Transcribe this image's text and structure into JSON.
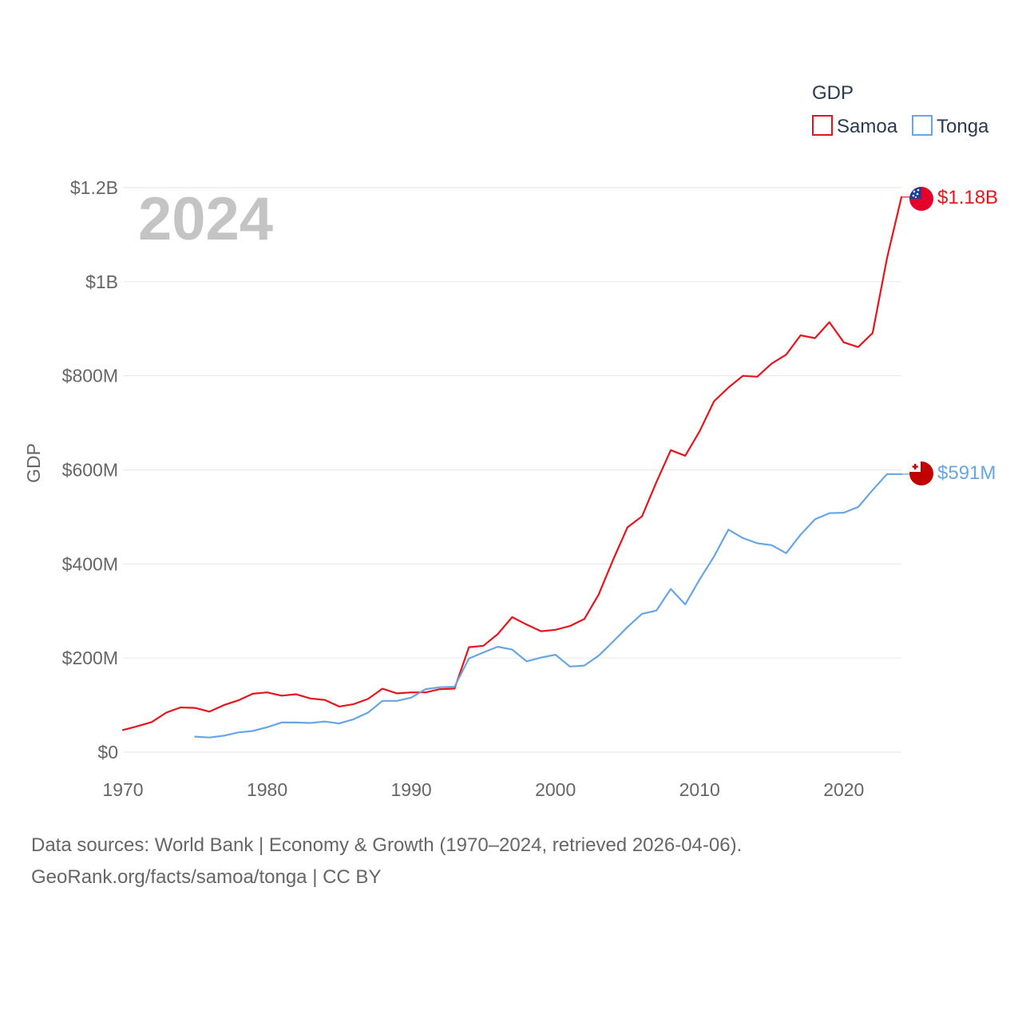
{
  "chart_data": {
    "type": "line",
    "title": "",
    "watermark_year": "2024",
    "ylabel": "GDP",
    "xlabel": "",
    "xlim": [
      1970,
      2024
    ],
    "ylim": [
      0,
      1200000000
    ],
    "x_ticks": [
      1970,
      1980,
      1990,
      2000,
      2010,
      2020
    ],
    "x_tick_labels": [
      "1970",
      "1980",
      "1990",
      "2000",
      "2010",
      "2020"
    ],
    "y_ticks": [
      0,
      200000000,
      400000000,
      600000000,
      800000000,
      1000000000,
      1200000000
    ],
    "y_tick_labels": [
      "$0",
      "$200M",
      "$400M",
      "$600M",
      "$800M",
      "$1B",
      "$1.2B"
    ],
    "grid": true,
    "legend": {
      "title": "GDP",
      "position": "top-right"
    },
    "series": [
      {
        "name": "Samoa",
        "color": "#e8141c",
        "end_label": "$1.18B",
        "flag": "samoa-flag",
        "x": [
          1970,
          1971,
          1972,
          1973,
          1974,
          1975,
          1976,
          1977,
          1978,
          1979,
          1980,
          1981,
          1982,
          1983,
          1984,
          1985,
          1986,
          1987,
          1988,
          1989,
          1990,
          1991,
          1992,
          1993,
          1994,
          1995,
          1996,
          1997,
          1998,
          1999,
          2000,
          2001,
          2002,
          2003,
          2004,
          2005,
          2006,
          2007,
          2008,
          2009,
          2010,
          2011,
          2012,
          2013,
          2014,
          2015,
          2016,
          2017,
          2018,
          2019,
          2020,
          2021,
          2022,
          2023,
          2024
        ],
        "values": [
          47000000,
          55000000,
          64000000,
          84000000,
          95000000,
          94000000,
          86000000,
          100000000,
          110000000,
          124000000,
          127000000,
          120000000,
          123000000,
          114000000,
          111000000,
          97000000,
          102000000,
          113000000,
          135000000,
          125000000,
          127000000,
          127000000,
          134000000,
          135000000,
          223000000,
          226000000,
          251000000,
          287000000,
          271000000,
          257000000,
          260000000,
          268000000,
          283000000,
          335000000,
          409000000,
          478000000,
          501000000,
          574000000,
          642000000,
          630000000,
          682000000,
          746000000,
          775000000,
          800000000,
          798000000,
          826000000,
          845000000,
          886000000,
          880000000,
          914000000,
          871000000,
          861000000,
          891000000,
          1050000000,
          1180000000
        ]
      },
      {
        "name": "Tonga",
        "color": "#66a6e4",
        "end_label": "$591M",
        "flag": "tonga-flag",
        "x": [
          1975,
          1976,
          1977,
          1978,
          1979,
          1980,
          1981,
          1982,
          1983,
          1984,
          1985,
          1986,
          1987,
          1988,
          1989,
          1990,
          1991,
          1992,
          1993,
          1994,
          1995,
          1996,
          1997,
          1998,
          1999,
          2000,
          2001,
          2002,
          2003,
          2004,
          2005,
          2006,
          2007,
          2008,
          2009,
          2010,
          2011,
          2012,
          2013,
          2014,
          2015,
          2016,
          2017,
          2018,
          2019,
          2020,
          2021,
          2022,
          2023,
          2024
        ],
        "values": [
          33000000,
          31000000,
          35000000,
          42000000,
          45000000,
          53000000,
          63000000,
          63000000,
          62000000,
          65000000,
          61000000,
          70000000,
          84000000,
          109000000,
          109000000,
          116000000,
          134000000,
          138000000,
          139000000,
          199000000,
          212000000,
          224000000,
          218000000,
          193000000,
          201000000,
          207000000,
          182000000,
          184000000,
          205000000,
          235000000,
          266000000,
          294000000,
          301000000,
          347000000,
          314000000,
          367000000,
          416000000,
          473000000,
          455000000,
          444000000,
          440000000,
          423000000,
          462000000,
          495000000,
          508000000,
          509000000,
          521000000,
          557000000,
          591000000,
          591000000
        ]
      }
    ]
  },
  "footer": {
    "line1": "Data sources: World Bank | Economy & Growth (1970–2024, retrieved 2026-04-06).",
    "line2": "GeoRank.org/facts/samoa/tonga | CC BY"
  }
}
